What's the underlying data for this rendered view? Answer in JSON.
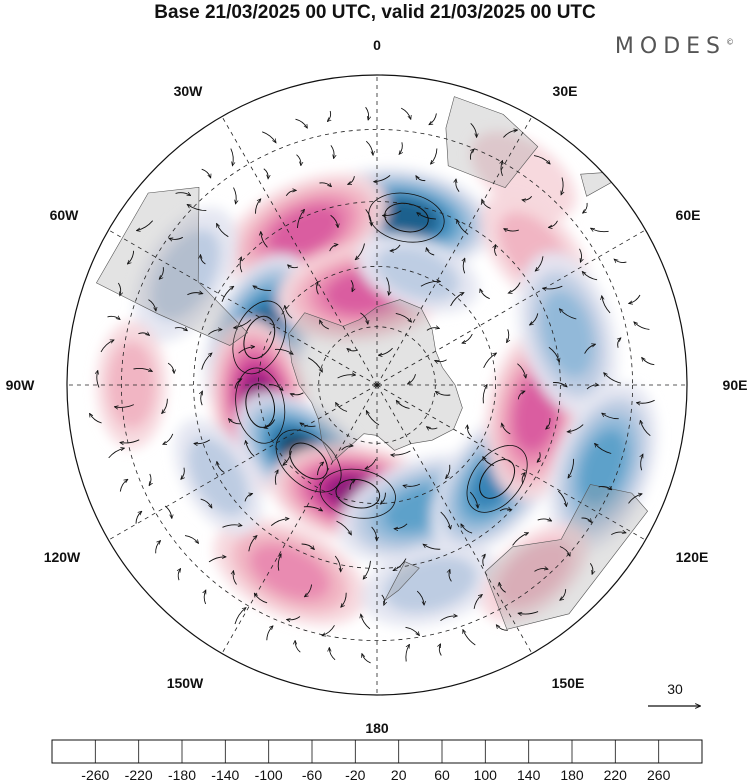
{
  "title": "Base 21/03/2025 00 UTC, valid 21/03/2025 00 UTC",
  "brand": "MODES",
  "brand_mark": "©",
  "map": {
    "projection": "south-polar-stereographic",
    "longitude_labels": [
      "0",
      "30E",
      "60E",
      "90E",
      "120E",
      "150E",
      "180",
      "150W",
      "120W",
      "90W",
      "60W",
      "30W"
    ],
    "vector_reference": {
      "value": "30",
      "arrow": "reference-arrow"
    }
  },
  "colorbar": {
    "ticks": [
      "-260",
      "-220",
      "-180",
      "-140",
      "-100",
      "-60",
      "-20",
      "20",
      "60",
      "100",
      "140",
      "180",
      "220",
      "260"
    ],
    "colors": [
      "#173a57",
      "#1f5f8b",
      "#3182b4",
      "#5b9fc9",
      "#8fb7d8",
      "#bccbe2",
      "#e4e6f1",
      "#ffffff",
      "#f7d7dc",
      "#f1b3c2",
      "#e889b0",
      "#d95b9f",
      "#bf2c8f",
      "#8e1a7d",
      "#5b0e62"
    ]
  },
  "anomalies": [
    {
      "lon": 10,
      "lat": -48,
      "value": -230
    },
    {
      "lon": 335,
      "lat": -48,
      "value": 170
    },
    {
      "lon": 292,
      "lat": -58,
      "value": -240
    },
    {
      "lon": 260,
      "lat": -60,
      "value": 250
    },
    {
      "lon": 222,
      "lat": -64,
      "value": -270
    },
    {
      "lon": 190,
      "lat": -62,
      "value": 250
    },
    {
      "lon": 160,
      "lat": -57,
      "value": -150
    },
    {
      "lon": 128,
      "lat": -52,
      "value": -180
    },
    {
      "lon": 100,
      "lat": -50,
      "value": 150
    },
    {
      "lon": 352,
      "lat": -66,
      "value": 140
    },
    {
      "lon": 50,
      "lat": -40,
      "value": 80
    },
    {
      "lon": 75,
      "lat": -42,
      "value": -120
    },
    {
      "lon": 110,
      "lat": -33,
      "value": -140
    },
    {
      "lon": 205,
      "lat": -40,
      "value": 110
    },
    {
      "lon": 165,
      "lat": -40,
      "value": -80
    },
    {
      "lon": 300,
      "lat": -37,
      "value": -90
    },
    {
      "lon": 270,
      "lat": -32,
      "value": 60
    },
    {
      "lon": 35,
      "lat": -30,
      "value": 50
    },
    {
      "lon": 240,
      "lat": -45,
      "value": -60
    },
    {
      "lon": 140,
      "lat": -32,
      "value": 60
    },
    {
      "lon": 20,
      "lat": -60,
      "value": -60
    }
  ]
}
